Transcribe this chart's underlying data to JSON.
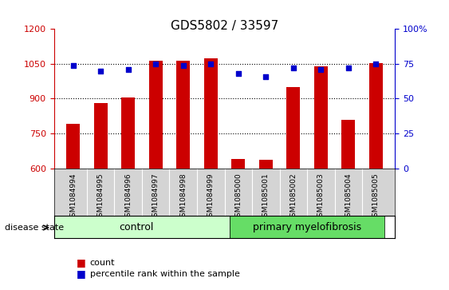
{
  "title": "GDS5802 / 33597",
  "samples": [
    "GSM1084994",
    "GSM1084995",
    "GSM1084996",
    "GSM1084997",
    "GSM1084998",
    "GSM1084999",
    "GSM1085000",
    "GSM1085001",
    "GSM1085002",
    "GSM1085003",
    "GSM1085004",
    "GSM1085005"
  ],
  "counts": [
    790,
    880,
    905,
    1065,
    1062,
    1075,
    640,
    635,
    950,
    1040,
    810,
    1052
  ],
  "percentiles": [
    74,
    70,
    71,
    75,
    74,
    75,
    68,
    66,
    72,
    71,
    72,
    75
  ],
  "groups": [
    "control",
    "control",
    "control",
    "control",
    "control",
    "control",
    "primary myelofibrosis",
    "primary myelofibrosis",
    "primary myelofibrosis",
    "primary myelofibrosis",
    "primary myelofibrosis",
    "primary myelofibrosis"
  ],
  "ylim_left": [
    600,
    1200
  ],
  "ylim_right": [
    0,
    100
  ],
  "yticks_left": [
    600,
    750,
    900,
    1050,
    1200
  ],
  "yticks_right": [
    0,
    25,
    50,
    75,
    100
  ],
  "bar_color": "#cc0000",
  "dot_color": "#0000cc",
  "control_color": "#ccffcc",
  "myelofibrosis_color": "#66dd66",
  "bg_color": "#d4d4d4",
  "grid_color": "#000000",
  "left_axis_color": "#cc0000",
  "right_axis_color": "#0000cc"
}
